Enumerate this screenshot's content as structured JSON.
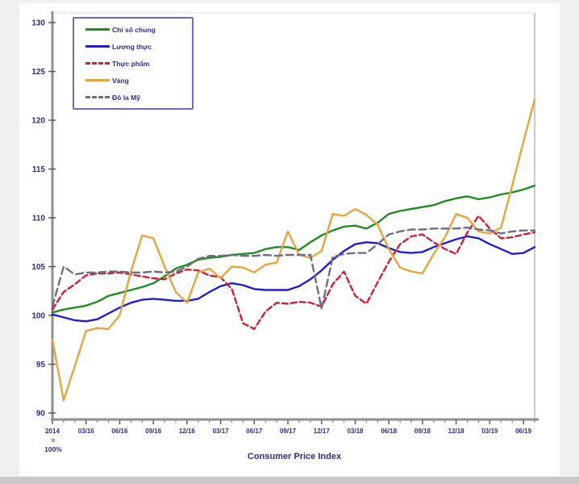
{
  "window": {
    "background": "#f2eff0",
    "panel_background": "#ffffff"
  },
  "chart_data": {
    "type": "line",
    "title": "Consumer Price Index",
    "x_note": [
      "2014",
      "=",
      "100%"
    ],
    "x_tick_labels": [
      "2014",
      "03/16",
      "06/16",
      "09/16",
      "12/16",
      "03/17",
      "06/17",
      "09/17",
      "12/17",
      "03/18",
      "06/18",
      "09/18",
      "12/18",
      "03/19",
      "06/19"
    ],
    "x_tick_indices": [
      0,
      3,
      6,
      9,
      12,
      15,
      18,
      21,
      24,
      27,
      30,
      33,
      36,
      39,
      42
    ],
    "y_ticks": [
      90,
      95,
      100,
      105,
      110,
      115,
      120,
      125,
      130
    ],
    "ylim": [
      90,
      130
    ],
    "n_points": 44,
    "grid": false,
    "legend_position": "top-left",
    "axis_color": "#8f8f8f",
    "label_color": "#2b2b8c",
    "legend_border_color": "#6b6bbf",
    "series": [
      {
        "name": "Chỉ số chung",
        "color": "#1f8c1f",
        "dash": null,
        "values": [
          100.3,
          100.6,
          100.8,
          101.0,
          101.4,
          102.0,
          102.3,
          102.6,
          102.9,
          103.3,
          104.0,
          104.8,
          105.2,
          105.7,
          105.9,
          106.0,
          106.2,
          106.3,
          106.4,
          106.8,
          107.0,
          107.0,
          106.7,
          107.5,
          108.2,
          108.7,
          109.1,
          109.2,
          108.9,
          109.5,
          110.4,
          110.7,
          110.9,
          111.1,
          111.3,
          111.7,
          112.0,
          112.2,
          111.9,
          112.1,
          112.4,
          112.6,
          112.9,
          113.3
        ]
      },
      {
        "name": "Lương thực",
        "color": "#1f1fd0",
        "dash": null,
        "values": [
          100.1,
          99.8,
          99.5,
          99.4,
          99.6,
          100.2,
          100.8,
          101.3,
          101.6,
          101.7,
          101.6,
          101.5,
          101.5,
          101.7,
          102.4,
          103.0,
          103.3,
          103.1,
          102.7,
          102.6,
          102.6,
          102.6,
          103.0,
          103.7,
          104.6,
          105.7,
          106.6,
          107.3,
          107.5,
          107.4,
          106.9,
          106.5,
          106.4,
          106.5,
          107.0,
          107.4,
          107.8,
          108.1,
          107.9,
          107.3,
          106.8,
          106.3,
          106.4,
          107.0
        ]
      },
      {
        "name": "Thực phẩm",
        "color": "#cf2136",
        "dash": "7,4",
        "values": [
          100.6,
          102.4,
          103.2,
          104.1,
          104.3,
          104.3,
          104.4,
          104.2,
          104.0,
          103.8,
          103.7,
          104.3,
          104.7,
          104.6,
          104.1,
          103.9,
          102.7,
          99.2,
          98.6,
          100.4,
          101.3,
          101.2,
          101.4,
          101.3,
          100.9,
          103.2,
          104.5,
          102.0,
          101.2,
          103.4,
          105.5,
          107.3,
          108.1,
          108.3,
          107.5,
          106.8,
          106.3,
          108.5,
          110.2,
          108.9,
          107.9,
          108.0,
          108.3,
          108.5
        ]
      },
      {
        "name": "Vàng",
        "color": "#e6a43e",
        "dash": null,
        "values": [
          97.5,
          91.3,
          94.8,
          98.4,
          98.7,
          98.6,
          100.0,
          104.5,
          108.2,
          107.9,
          105.0,
          102.4,
          101.3,
          104.4,
          104.8,
          103.8,
          105.0,
          104.9,
          104.4,
          105.2,
          105.4,
          108.6,
          106.2,
          105.9,
          106.6,
          110.4,
          110.2,
          110.9,
          110.3,
          109.3,
          106.8,
          104.9,
          104.5,
          104.3,
          106.3,
          108.0,
          110.4,
          110.0,
          108.6,
          108.4,
          109.0,
          113.3,
          117.8,
          122.1
        ]
      },
      {
        "name": "Đô la Mỹ",
        "color": "#6e6e82",
        "dash": "9,5",
        "values": [
          100.9,
          105.0,
          104.2,
          104.4,
          104.4,
          104.5,
          104.5,
          104.4,
          104.4,
          104.5,
          104.4,
          104.5,
          105.0,
          105.8,
          106.1,
          106.1,
          106.2,
          106.1,
          106.1,
          106.2,
          106.1,
          106.2,
          106.2,
          106.2,
          100.7,
          106.0,
          106.3,
          106.4,
          106.4,
          107.3,
          108.3,
          108.6,
          108.8,
          108.8,
          108.9,
          108.9,
          108.9,
          109.0,
          108.8,
          108.7,
          108.4,
          108.6,
          108.7,
          108.7
        ]
      }
    ]
  }
}
